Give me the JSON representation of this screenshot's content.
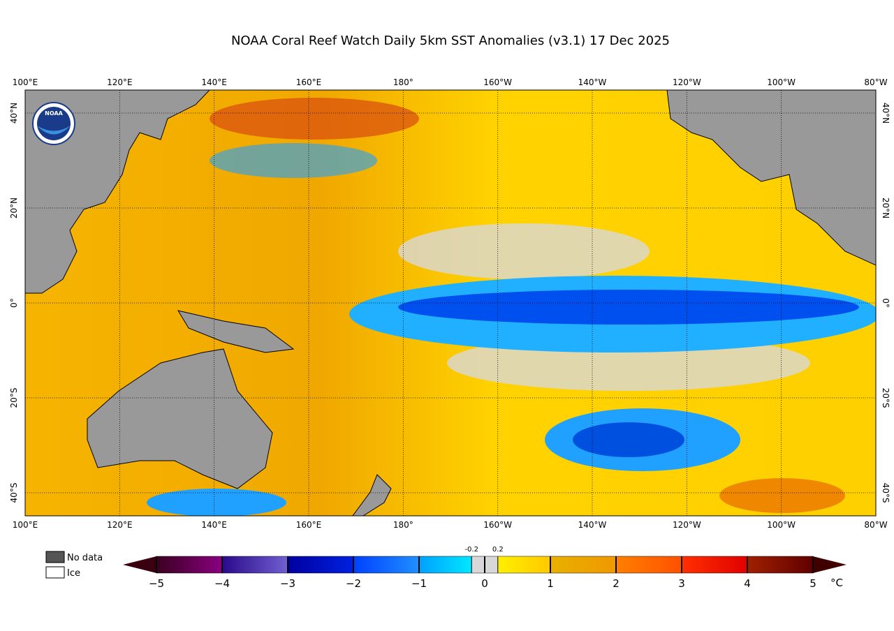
{
  "title": "NOAA Coral Reef Watch Daily 5km SST Anomalies  (v3.1)   17 Dec 2025",
  "logo": "NOAA",
  "map": {
    "lon_labels": [
      "100°E",
      "120°E",
      "140°E",
      "160°E",
      "180°",
      "160°W",
      "140°W",
      "120°W",
      "100°W",
      "80°W"
    ],
    "lat_labels": [
      "40°N",
      "20°N",
      "0°",
      "20°S",
      "40°S"
    ]
  },
  "legend": {
    "items": [
      "No data",
      "Ice"
    ]
  },
  "colorbar": {
    "range": [
      -5,
      5
    ],
    "ticks": [
      {
        "value": -5,
        "label": "−5"
      },
      {
        "value": -4,
        "label": "−4"
      },
      {
        "value": -3,
        "label": "−3"
      },
      {
        "value": -2,
        "label": "−2"
      },
      {
        "value": -1,
        "label": "−1"
      },
      0,
      1,
      2,
      3,
      4,
      5
    ],
    "minor_ticks": [
      -0.2,
      0.2
    ],
    "unit": "°C"
  }
}
